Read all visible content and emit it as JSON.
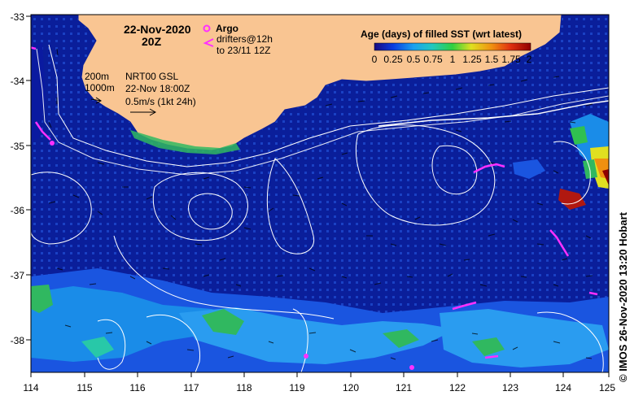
{
  "header": {
    "date": "22-Nov-2020",
    "time": "20Z"
  },
  "legend": {
    "argo_label": "Argo",
    "drifters_line1": "drifters@12h",
    "drifters_line2": "to 23/11 12Z",
    "age_title": "Age (days) of filled SST (wrt latest)",
    "age_ticks": [
      "0",
      "0.25",
      "0.5",
      "0.75",
      "1",
      "1.25",
      "1.5",
      "1.75",
      "2"
    ],
    "age_colors": [
      "#1a0a80",
      "#0a3ce0",
      "#1aa0f0",
      "#20c8c0",
      "#30d040",
      "#e0e020",
      "#f09010",
      "#e03010",
      "#900000"
    ]
  },
  "contours": {
    "label_200": "200m",
    "label_1000": "1000m"
  },
  "info": {
    "line1": "NRT00 GSL",
    "line2": "22-Nov 18:00Z",
    "line3": "0.5m/s (1kt 24h)"
  },
  "axes": {
    "lon_ticks": [
      "114",
      "115",
      "116",
      "117",
      "118",
      "119",
      "120",
      "121",
      "122",
      "123",
      "124",
      "125"
    ],
    "lat_ticks": [
      "-33",
      "-34",
      "-35",
      "-36",
      "-37",
      "-38"
    ]
  },
  "credit": "© IMOS 26-Nov-2020 13:20 Hobart",
  "colors": {
    "ocean_deep": "#0a1e9a",
    "ocean_mid": "#1746d8",
    "land": "#f9c592",
    "contour": "#ffffff",
    "argo": "#ff30ff"
  }
}
